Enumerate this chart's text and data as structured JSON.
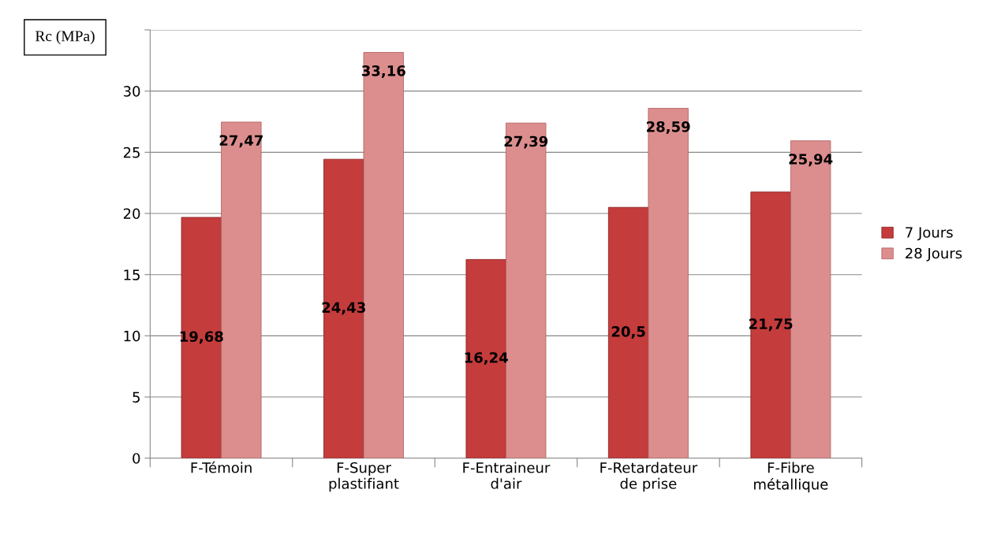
{
  "chart_data": {
    "type": "bar",
    "ylabel": "Rc (MPa)",
    "categories": [
      "F-Témoin",
      "F-Super\nplastifiant",
      "F-Entraineur\nd'air",
      "F-Retardateur\nde prise",
      "F-Fibre\nmétallique"
    ],
    "series": [
      {
        "name": "7 Jours",
        "color": "#c43c3c",
        "values": [
          19.68,
          24.43,
          16.24,
          20.5,
          21.75
        ],
        "value_labels": [
          "19,68",
          "24,43",
          "16,24",
          "20,5",
          "21,75"
        ]
      },
      {
        "name": "28 Jours",
        "color": "#dc8e8e",
        "values": [
          27.47,
          33.16,
          27.39,
          28.59,
          25.94
        ],
        "value_labels": [
          "27,47",
          "33,16",
          "27,39",
          "28,59",
          "25,94"
        ]
      }
    ],
    "ylim": [
      0,
      35
    ],
    "yticks": [
      0,
      5,
      10,
      15,
      20,
      25,
      30,
      {
        "value": 35,
        "label": null
      }
    ],
    "grid": "y",
    "legend": "right"
  }
}
